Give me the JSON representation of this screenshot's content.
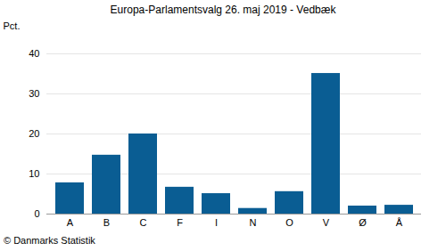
{
  "chart_data": {
    "type": "bar",
    "title": "Europa-Parlamentsvalg 26. maj 2019 - Vedbæk",
    "y_label": "Pct.",
    "caption": "© Danmarks Statistik",
    "categories": [
      "A",
      "B",
      "C",
      "F",
      "I",
      "N",
      "O",
      "V",
      "Ø",
      "Å"
    ],
    "values": [
      7.8,
      14.7,
      20.0,
      6.7,
      5.1,
      1.4,
      5.6,
      35.1,
      2.0,
      2.2
    ],
    "color": "#0a5d93",
    "ylim": [
      0,
      40
    ],
    "yticks": [
      0,
      10,
      20,
      30,
      40
    ],
    "grid": true
  }
}
